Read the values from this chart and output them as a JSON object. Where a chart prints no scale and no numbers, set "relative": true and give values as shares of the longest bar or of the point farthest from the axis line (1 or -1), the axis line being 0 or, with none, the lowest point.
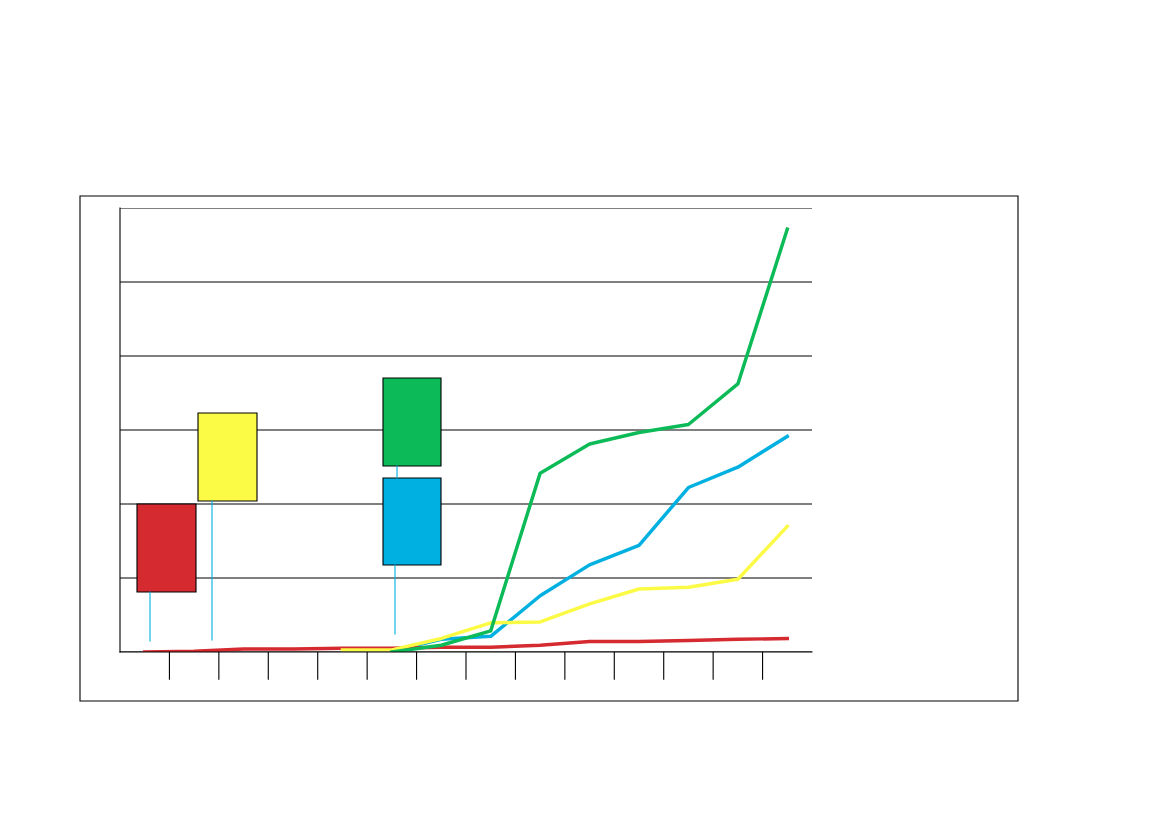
{
  "chart_data": {
    "type": "line",
    "relative": true,
    "grid": "y",
    "categories": [
      null,
      null,
      null,
      null,
      null,
      null,
      null,
      null,
      null,
      null,
      null,
      null,
      null,
      null
    ],
    "series": [
      {
        "color": "#00b0e0",
        "values": [
          null,
          null,
          null,
          null,
          null,
          0.002,
          0.03,
          0.037,
          0.133,
          0.206,
          0.252,
          0.389,
          0.437,
          0.51
        ]
      },
      {
        "color": "#d42a30",
        "values": [
          0,
          0.002,
          0.007,
          0.007,
          0.009,
          0.009,
          0.011,
          0.011,
          0.016,
          0.025,
          0.025,
          0.027,
          0.03,
          0.032
        ]
      },
      {
        "color": "#fbfb46",
        "values": [
          null,
          null,
          null,
          null,
          0.005,
          0.005,
          0.032,
          0.069,
          0.071,
          0.114,
          0.149,
          0.153,
          0.172,
          0.297
        ]
      },
      {
        "color": "#0cbb58",
        "values": [
          null,
          null,
          null,
          null,
          null,
          0,
          0.016,
          0.05,
          0.423,
          0.492,
          0.519,
          0.538,
          0.634,
          1
        ]
      }
    ]
  }
}
